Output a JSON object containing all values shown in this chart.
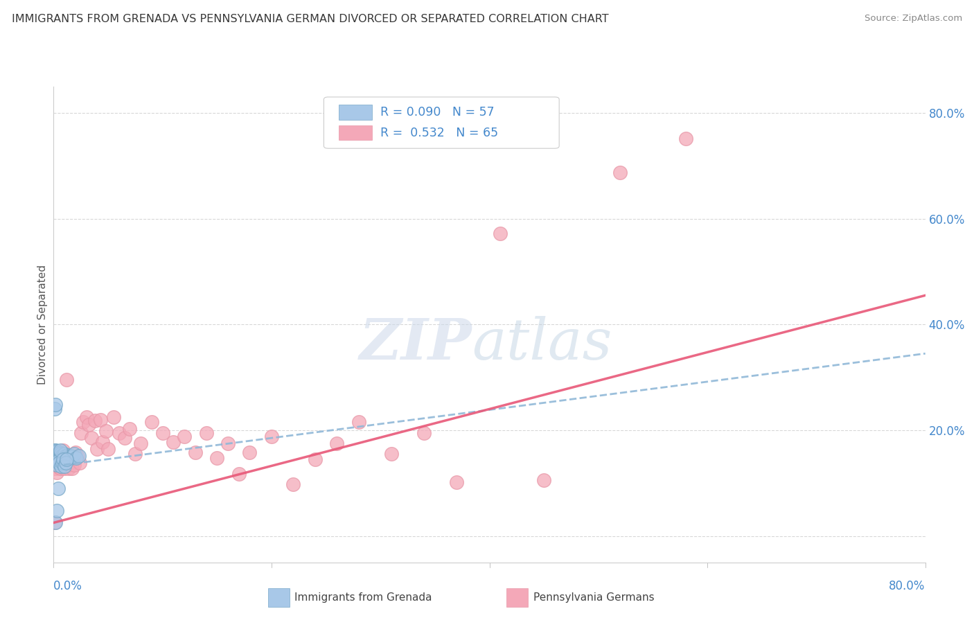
{
  "title": "IMMIGRANTS FROM GRENADA VS PENNSYLVANIA GERMAN DIVORCED OR SEPARATED CORRELATION CHART",
  "source": "Source: ZipAtlas.com",
  "ylabel": "Divorced or Separated",
  "color_blue": "#a8c8e8",
  "color_pink": "#f4a8b8",
  "line_blue_color": "#90b8d8",
  "line_pink_color": "#e85878",
  "legend_text_color": "#4488cc",
  "axis_label_color": "#4488cc",
  "xmin": 0.0,
  "xmax": 0.8,
  "ymin": -0.05,
  "ymax": 0.85,
  "yticks": [
    0.0,
    0.2,
    0.4,
    0.6,
    0.8
  ],
  "background_color": "#ffffff",
  "grid_color": "#d8d8d8",
  "title_color": "#383838",
  "title_fontsize": 11.5,
  "blue_scatter_x": [
    0.001,
    0.001,
    0.001,
    0.002,
    0.002,
    0.002,
    0.002,
    0.002,
    0.002,
    0.002,
    0.003,
    0.003,
    0.003,
    0.003,
    0.003,
    0.004,
    0.004,
    0.004,
    0.004,
    0.005,
    0.005,
    0.005,
    0.006,
    0.006,
    0.006,
    0.007,
    0.007,
    0.008,
    0.008,
    0.009,
    0.01,
    0.01,
    0.011,
    0.012,
    0.013,
    0.014,
    0.015,
    0.016,
    0.017,
    0.019,
    0.021,
    0.023,
    0.001,
    0.002,
    0.003,
    0.004,
    0.005,
    0.006,
    0.007,
    0.008,
    0.009,
    0.01,
    0.011,
    0.012,
    0.002,
    0.003,
    0.004
  ],
  "blue_scatter_y": [
    0.155,
    0.148,
    0.162,
    0.15,
    0.145,
    0.155,
    0.162,
    0.158,
    0.145,
    0.14,
    0.152,
    0.158,
    0.145,
    0.16,
    0.148,
    0.15,
    0.155,
    0.145,
    0.148,
    0.153,
    0.148,
    0.157,
    0.152,
    0.158,
    0.145,
    0.15,
    0.155,
    0.148,
    0.153,
    0.15,
    0.148,
    0.155,
    0.152,
    0.148,
    0.153,
    0.15,
    0.148,
    0.152,
    0.15,
    0.155,
    0.148,
    0.152,
    0.24,
    0.248,
    0.135,
    0.142,
    0.138,
    0.162,
    0.132,
    0.138,
    0.145,
    0.132,
    0.138,
    0.145,
    0.025,
    0.048,
    0.09
  ],
  "pink_scatter_x": [
    0.001,
    0.001,
    0.002,
    0.002,
    0.003,
    0.003,
    0.004,
    0.005,
    0.005,
    0.006,
    0.007,
    0.008,
    0.009,
    0.01,
    0.01,
    0.012,
    0.013,
    0.014,
    0.015,
    0.016,
    0.017,
    0.018,
    0.019,
    0.02,
    0.022,
    0.024,
    0.025,
    0.027,
    0.03,
    0.032,
    0.035,
    0.038,
    0.04,
    0.043,
    0.045,
    0.048,
    0.05,
    0.055,
    0.06,
    0.065,
    0.07,
    0.075,
    0.08,
    0.09,
    0.1,
    0.11,
    0.12,
    0.13,
    0.14,
    0.15,
    0.16,
    0.17,
    0.18,
    0.2,
    0.22,
    0.24,
    0.26,
    0.28,
    0.31,
    0.34,
    0.37,
    0.41,
    0.45,
    0.52,
    0.58
  ],
  "pink_scatter_y": [
    0.025,
    0.138,
    0.148,
    0.128,
    0.155,
    0.12,
    0.138,
    0.142,
    0.13,
    0.128,
    0.148,
    0.135,
    0.162,
    0.128,
    0.145,
    0.295,
    0.148,
    0.128,
    0.138,
    0.152,
    0.128,
    0.148,
    0.135,
    0.158,
    0.152,
    0.138,
    0.195,
    0.215,
    0.225,
    0.21,
    0.185,
    0.218,
    0.165,
    0.22,
    0.178,
    0.198,
    0.165,
    0.225,
    0.195,
    0.185,
    0.202,
    0.155,
    0.175,
    0.215,
    0.195,
    0.178,
    0.188,
    0.158,
    0.195,
    0.148,
    0.175,
    0.118,
    0.158,
    0.188,
    0.098,
    0.145,
    0.175,
    0.215,
    0.155,
    0.195,
    0.102,
    0.572,
    0.105,
    0.688,
    0.752
  ],
  "blue_line_x": [
    0.0,
    0.8
  ],
  "blue_line_y": [
    0.132,
    0.345
  ],
  "pink_line_x": [
    0.0,
    0.8
  ],
  "pink_line_y": [
    0.025,
    0.455
  ]
}
